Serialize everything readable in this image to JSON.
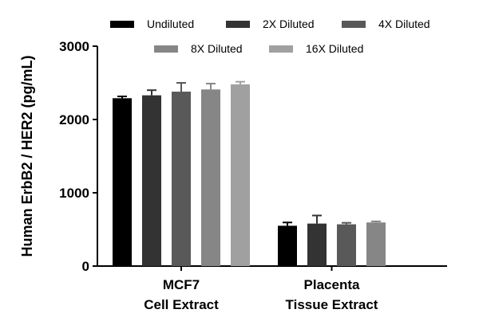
{
  "chart_data": {
    "type": "bar",
    "title": "",
    "ylabel": "Human  ErbB2 / HER2 (pg/mL)",
    "xlabel": "",
    "ylim": [
      0,
      3000
    ],
    "yticks": [
      0,
      1000,
      2000,
      3000
    ],
    "categories": [
      {
        "line1": "MCF7",
        "line2": "Cell Extract"
      },
      {
        "line1": "Placenta",
        "line2": "Tissue Extract"
      }
    ],
    "series": [
      {
        "name": "Undiluted",
        "color": "#000000",
        "values": [
          2290,
          550
        ],
        "errors": [
          25,
          45
        ]
      },
      {
        "name": "2X Diluted",
        "color": "#333333",
        "values": [
          2330,
          580
        ],
        "errors": [
          70,
          110
        ]
      },
      {
        "name": "4X Diluted",
        "color": "#595959",
        "values": [
          2380,
          570
        ],
        "errors": [
          120,
          20
        ]
      },
      {
        "name": "8X Diluted",
        "color": "#868686",
        "values": [
          2410,
          595
        ],
        "errors": [
          80,
          15
        ]
      },
      {
        "name": "16X Diluted",
        "color": "#a0a0a0",
        "values": [
          2480,
          null
        ],
        "errors": [
          35,
          null
        ]
      }
    ],
    "legend": "top",
    "grid": false
  }
}
